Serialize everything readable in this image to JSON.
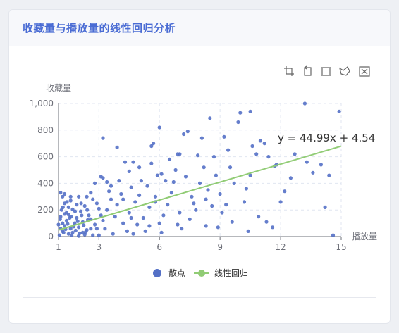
{
  "card": {
    "title": "收藏量与播放量的线性回归分析"
  },
  "toolbox": {
    "icons": [
      "zoom-select-icon",
      "zoom-reset-icon",
      "rect-brush-icon",
      "lasso-brush-icon",
      "clear-brush-icon"
    ]
  },
  "chart_data": {
    "type": "scatter",
    "ylabel": "收藏量",
    "xlabel": "播放量",
    "xlim": [
      1,
      15
    ],
    "ylim": [
      0,
      1000
    ],
    "x_ticks": [
      "1",
      "3",
      "6",
      "9",
      "12",
      "15"
    ],
    "y_ticks": [
      "0",
      "200",
      "400",
      "600",
      "800",
      "1,000"
    ],
    "grid": true,
    "legend_position": "bottom-center",
    "series": [
      {
        "name": "散点",
        "kind": "scatter",
        "color": "#5470c6",
        "points": [
          [
            1.2,
            40
          ],
          [
            1.3,
            80
          ],
          [
            1.5,
            20
          ],
          [
            1.4,
            120
          ],
          [
            1.6,
            60
          ],
          [
            1.8,
            100
          ],
          [
            1.1,
            150
          ],
          [
            1.7,
            30
          ],
          [
            2.0,
            70
          ],
          [
            2.2,
            110
          ],
          [
            1.9,
            140
          ],
          [
            2.4,
            50
          ],
          [
            2.1,
            190
          ],
          [
            1.5,
            220
          ],
          [
            1.3,
            250
          ],
          [
            2.6,
            130
          ],
          [
            2.8,
            90
          ],
          [
            2.3,
            230
          ],
          [
            1.2,
            300
          ],
          [
            1.6,
            270
          ],
          [
            2.5,
            160
          ],
          [
            3.0,
            210
          ],
          [
            2.7,
            280
          ],
          [
            1.4,
            180
          ],
          [
            1.05,
            10
          ],
          [
            1.1,
            60
          ],
          [
            1.2,
            100
          ],
          [
            1.25,
            30
          ],
          [
            1.35,
            55
          ],
          [
            1.45,
            95
          ],
          [
            1.55,
            140
          ],
          [
            1.65,
            10
          ],
          [
            1.75,
            75
          ],
          [
            1.85,
            45
          ],
          [
            1.95,
            115
          ],
          [
            2.05,
            25
          ],
          [
            2.15,
            160
          ],
          [
            2.25,
            85
          ],
          [
            2.35,
            35
          ],
          [
            2.45,
            125
          ],
          [
            1.15,
            200
          ],
          [
            1.3,
            170
          ],
          [
            1.5,
            165
          ],
          [
            1.7,
            205
          ],
          [
            1.9,
            240
          ],
          [
            2.0,
            5
          ],
          [
            2.3,
            15
          ],
          [
            2.6,
            60
          ],
          [
            1.0,
            90
          ],
          [
            1.08,
            130
          ],
          [
            1.22,
            220
          ],
          [
            1.42,
            260
          ],
          [
            1.62,
            150
          ],
          [
            1.82,
            190
          ],
          [
            2.12,
            250
          ],
          [
            2.42,
            200
          ],
          [
            1.3,
            320
          ],
          [
            2.0,
            300
          ],
          [
            2.6,
            330
          ],
          [
            2.9,
            250
          ],
          [
            3.1,
            160
          ],
          [
            2.7,
            10
          ],
          [
            2.9,
            60
          ],
          [
            3.2,
            120
          ],
          [
            3.4,
            200
          ],
          [
            3.6,
            280
          ],
          [
            3.8,
            150
          ],
          [
            3.5,
            340
          ],
          [
            3.9,
            240
          ],
          [
            4.2,
            100
          ],
          [
            4.5,
            180
          ],
          [
            4.1,
            320
          ],
          [
            4.8,
            260
          ],
          [
            3.3,
            60
          ],
          [
            3.7,
            20
          ],
          [
            4.4,
            40
          ],
          [
            4.9,
            90
          ],
          [
            3.2,
            440
          ],
          [
            3.6,
            380
          ],
          [
            4.0,
            420
          ],
          [
            4.6,
            370
          ],
          [
            3.2,
            740
          ],
          [
            3.9,
            670
          ],
          [
            4.3,
            560
          ],
          [
            4.7,
            560
          ],
          [
            5.0,
            310
          ],
          [
            3.1,
            450
          ],
          [
            5.2,
            140
          ],
          [
            5.5,
            220
          ],
          [
            5.8,
            300
          ],
          [
            5.4,
            380
          ],
          [
            5.9,
            460
          ],
          [
            5.6,
            550
          ],
          [
            6.0,
            100
          ],
          [
            5.3,
            40
          ],
          [
            5.7,
            700
          ],
          [
            6.0,
            820
          ],
          [
            5.6,
            680
          ],
          [
            5.1,
            420
          ],
          [
            5.0,
            520
          ],
          [
            5.8,
            260
          ],
          [
            4.6,
            140
          ],
          [
            4.2,
            280
          ],
          [
            6.2,
            160
          ],
          [
            6.4,
            240
          ],
          [
            6.6,
            330
          ],
          [
            6.3,
            420
          ],
          [
            6.8,
            500
          ],
          [
            6.5,
            580
          ],
          [
            7.0,
            180
          ],
          [
            6.9,
            90
          ],
          [
            7.2,
            770
          ],
          [
            7.4,
            790
          ],
          [
            7.0,
            620
          ],
          [
            7.3,
            450
          ],
          [
            7.6,
            300
          ],
          [
            6.7,
            410
          ],
          [
            7.1,
            60
          ],
          [
            7.5,
            130
          ],
          [
            7.8,
            200
          ],
          [
            8.0,
            400
          ],
          [
            7.9,
            610
          ],
          [
            8.2,
            520
          ],
          [
            8.4,
            350
          ],
          [
            8.6,
            230
          ],
          [
            8.1,
            740
          ],
          [
            8.3,
            80
          ],
          [
            8.5,
            890
          ],
          [
            8.7,
            600
          ],
          [
            8.8,
            460
          ],
          [
            9.0,
            320
          ],
          [
            9.2,
            750
          ],
          [
            9.4,
            650
          ],
          [
            9.1,
            180
          ],
          [
            9.3,
            240
          ],
          [
            9.5,
            520
          ],
          [
            9.7,
            400
          ],
          [
            9.9,
            860
          ],
          [
            10.0,
            930
          ],
          [
            10.3,
            360
          ],
          [
            10.5,
            460
          ],
          [
            10.2,
            260
          ],
          [
            10.6,
            680
          ],
          [
            10.8,
            620
          ],
          [
            10.5,
            940
          ],
          [
            11.0,
            720
          ],
          [
            11.2,
            700
          ],
          [
            11.4,
            600
          ],
          [
            11.7,
            530
          ],
          [
            11.3,
            110
          ],
          [
            11.6,
            70
          ],
          [
            12.0,
            260
          ],
          [
            12.2,
            340
          ],
          [
            12.7,
            620
          ],
          [
            13.2,
            1000
          ],
          [
            13.3,
            560
          ],
          [
            13.6,
            480
          ],
          [
            14.0,
            540
          ],
          [
            14.2,
            220
          ],
          [
            14.4,
            460
          ],
          [
            14.6,
            10
          ],
          [
            14.9,
            940
          ],
          [
            12.5,
            440
          ],
          [
            11.8,
            540
          ],
          [
            10.9,
            150
          ],
          [
            10.4,
            40
          ],
          [
            9.6,
            110
          ],
          [
            8.9,
            70
          ],
          [
            8.3,
            280
          ],
          [
            7.7,
            250
          ],
          [
            6.1,
            30
          ],
          [
            5.5,
            80
          ],
          [
            4.7,
            20
          ],
          [
            3.0,
            10
          ],
          [
            2.2,
            30
          ],
          [
            1.1,
            330
          ],
          [
            1.6,
            300
          ],
          [
            2.4,
            300
          ],
          [
            2.8,
            400
          ],
          [
            3.4,
            410
          ],
          [
            4.5,
            490
          ],
          [
            6.1,
            470
          ],
          [
            6.9,
            620
          ]
        ]
      },
      {
        "name": "线性回归",
        "kind": "line",
        "color": "#91cc75",
        "x": [
          1,
          15
        ],
        "y": [
          49.53,
          679.39
        ]
      }
    ],
    "annotation": "y = 44.99x + 4.54"
  }
}
